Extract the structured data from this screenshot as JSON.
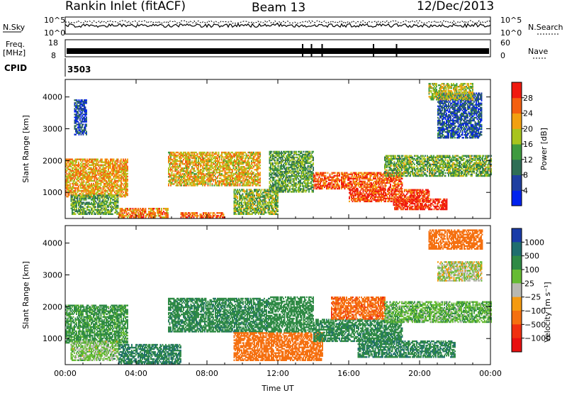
{
  "header": {
    "station": "Rankin Inlet (fitACF)",
    "beam": "Beam 13",
    "date": "12/Dec/2013"
  },
  "status_panels": {
    "nsky_label": "N.Sky",
    "nsearch_label": "N.Search",
    "nsky_ticks": [
      "10^5",
      "10^0"
    ],
    "nsearch_ticks": [
      "10^5",
      "10^0"
    ],
    "freq_label_line1": "Freq.",
    "freq_label_line2": "[MHz]",
    "freq_ticks": [
      "18",
      "8"
    ],
    "nave_label": "Nave",
    "nave_ticks": [
      "60",
      "0"
    ],
    "cpid_label": "CPID",
    "cpid_value": "3503"
  },
  "colors": {
    "power_scale": [
      "#0022ee",
      "#1f3fa0",
      "#2f6e55",
      "#3f9a3f",
      "#a8c41e",
      "#f2a010",
      "#f46010",
      "#f01a10"
    ],
    "velocity_scale": [
      "#1a3ca8",
      "#1f6e6e",
      "#2f8a45",
      "#66bb33",
      "#b8b8b0",
      "#f59a10",
      "#f57010",
      "#f03010",
      "#e81010"
    ]
  },
  "chart_data": [
    {
      "type": "heatmap",
      "name": "power",
      "xlabel": "Time UT",
      "ylabel": "Slant Range [km]",
      "x_ticks": [
        "00:00",
        "04:00",
        "08:00",
        "12:00",
        "16:00",
        "20:00",
        "00:00"
      ],
      "xlim_hours": [
        0,
        24
      ],
      "y_ticks": [
        "1000",
        "2000",
        "3000",
        "4000"
      ],
      "ylim_km": [
        180,
        4550
      ],
      "colorbar_label": "Power [dB]",
      "colorbar_ticks": [
        "4",
        "8",
        "12",
        "16",
        "20",
        "24",
        "28"
      ],
      "colorbar_range": [
        0,
        32
      ],
      "echo_regions": [
        {
          "t0": 0.0,
          "t1": 3.5,
          "r0": 850,
          "r1": 2050,
          "value": 22
        },
        {
          "t0": 0.3,
          "t1": 3.0,
          "r0": 300,
          "r1": 900,
          "value": 14
        },
        {
          "t0": 3.0,
          "t1": 5.8,
          "r0": 200,
          "r1": 500,
          "value": 24
        },
        {
          "t0": 0.5,
          "t1": 1.2,
          "r0": 2800,
          "r1": 3900,
          "value": 6
        },
        {
          "t0": 5.8,
          "t1": 11.0,
          "r0": 1200,
          "r1": 2250,
          "value": 21
        },
        {
          "t0": 6.5,
          "t1": 9.0,
          "r0": 200,
          "r1": 350,
          "value": 26
        },
        {
          "t0": 9.5,
          "t1": 12.0,
          "r0": 300,
          "r1": 1100,
          "value": 16
        },
        {
          "t0": 11.5,
          "t1": 14.0,
          "r0": 1000,
          "r1": 2300,
          "value": 14
        },
        {
          "t0": 14.0,
          "t1": 19.0,
          "r0": 1100,
          "r1": 1600,
          "value": 27
        },
        {
          "t0": 16.0,
          "t1": 20.5,
          "r0": 700,
          "r1": 1100,
          "value": 28
        },
        {
          "t0": 18.5,
          "t1": 21.5,
          "r0": 450,
          "r1": 800,
          "value": 30
        },
        {
          "t0": 18.0,
          "t1": 24.0,
          "r0": 1500,
          "r1": 2150,
          "value": 15
        },
        {
          "t0": 21.0,
          "t1": 23.5,
          "r0": 2700,
          "r1": 4100,
          "value": 7
        },
        {
          "t0": 20.5,
          "t1": 23.0,
          "r0": 3900,
          "r1": 4400,
          "value": 18
        }
      ]
    },
    {
      "type": "heatmap",
      "name": "velocity",
      "xlabel": "Time UT",
      "ylabel": "Slant Range [km]",
      "x_ticks": [
        "00:00",
        "04:00",
        "08:00",
        "12:00",
        "16:00",
        "20:00",
        "00:00"
      ],
      "xlim_hours": [
        0,
        24
      ],
      "y_ticks": [
        "1000",
        "2000",
        "3000",
        "4000"
      ],
      "ylim_km": [
        180,
        4550
      ],
      "colorbar_label": "Velocity [m s⁻¹]",
      "colorbar_ticks": [
        "1000",
        "500",
        "100",
        "25",
        "−25",
        "−100",
        "−500",
        "−1000"
      ],
      "echo_regions": [
        {
          "t0": 0.0,
          "t1": 3.5,
          "r0": 850,
          "r1": 2050,
          "value": 150
        },
        {
          "t0": 0.3,
          "t1": 3.0,
          "r0": 300,
          "r1": 900,
          "value": 50
        },
        {
          "t0": 3.0,
          "t1": 6.5,
          "r0": 200,
          "r1": 800,
          "value": 500
        },
        {
          "t0": 5.8,
          "t1": 11.5,
          "r0": 1200,
          "r1": 2250,
          "value": 400
        },
        {
          "t0": 9.5,
          "t1": 14.5,
          "r0": 300,
          "r1": 1200,
          "value": -300
        },
        {
          "t0": 11.5,
          "t1": 14.0,
          "r0": 1200,
          "r1": 2300,
          "value": 300
        },
        {
          "t0": 14.0,
          "t1": 19.0,
          "r0": 900,
          "r1": 1600,
          "value": 400
        },
        {
          "t0": 15.0,
          "t1": 18.0,
          "r0": 1600,
          "r1": 2300,
          "value": -400
        },
        {
          "t0": 16.5,
          "t1": 22.0,
          "r0": 400,
          "r1": 900,
          "value": 450
        },
        {
          "t0": 18.0,
          "t1": 24.0,
          "r0": 1500,
          "r1": 2150,
          "value": 80
        },
        {
          "t0": 20.5,
          "t1": 23.5,
          "r0": 3800,
          "r1": 4400,
          "value": -300
        },
        {
          "t0": 21.0,
          "t1": 23.5,
          "r0": 2800,
          "r1": 3400,
          "value": 10
        }
      ]
    }
  ]
}
